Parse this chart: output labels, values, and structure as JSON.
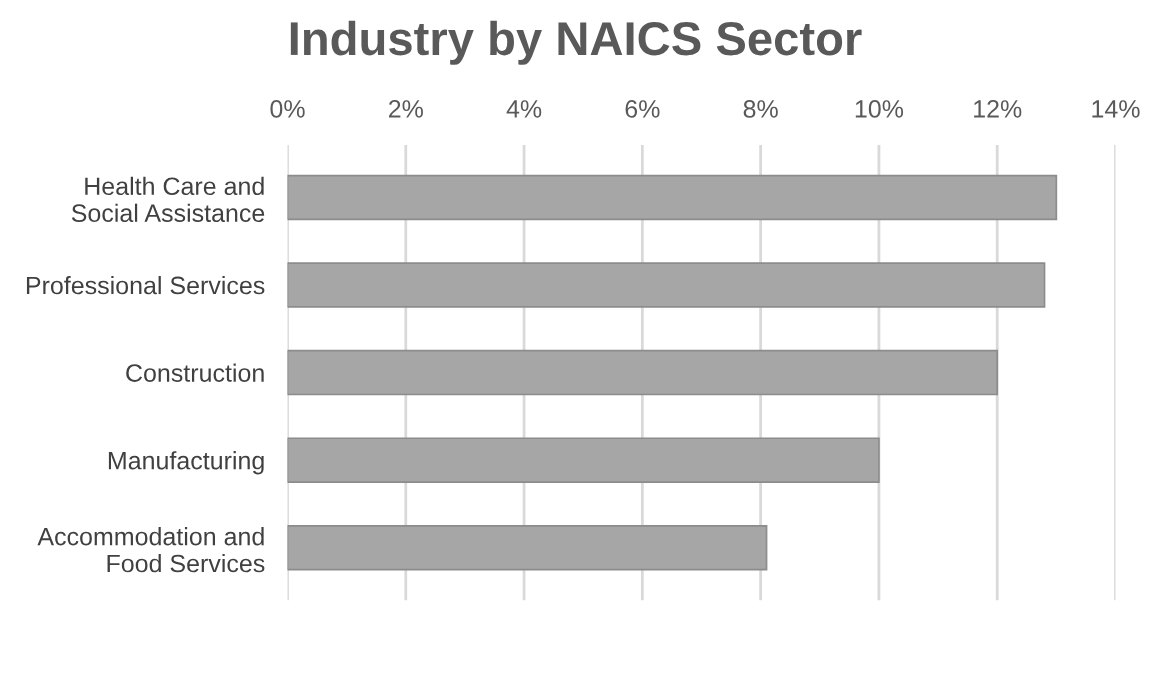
{
  "chart_data": {
    "type": "bar",
    "orientation": "horizontal",
    "title": "Industry by NAICS Sector",
    "categories": [
      "Health Care and\nSocial Assistance",
      "Professional Services",
      "Construction",
      "Manufacturing",
      "Accommodation and\nFood Services"
    ],
    "values": [
      13.0,
      12.8,
      12.0,
      10.0,
      8.1
    ],
    "color": "#a6a6a6",
    "xlim": [
      0,
      14
    ],
    "xticks": [
      {
        "value": 0,
        "label": "0%"
      },
      {
        "value": 2,
        "label": "2%"
      },
      {
        "value": 4,
        "label": "4%"
      },
      {
        "value": 6,
        "label": "6%"
      },
      {
        "value": 8,
        "label": "8%"
      },
      {
        "value": 10,
        "label": "10%"
      },
      {
        "value": 12,
        "label": "12%"
      },
      {
        "value": 14,
        "label": "14%"
      }
    ],
    "grid": "x",
    "legend": false
  }
}
